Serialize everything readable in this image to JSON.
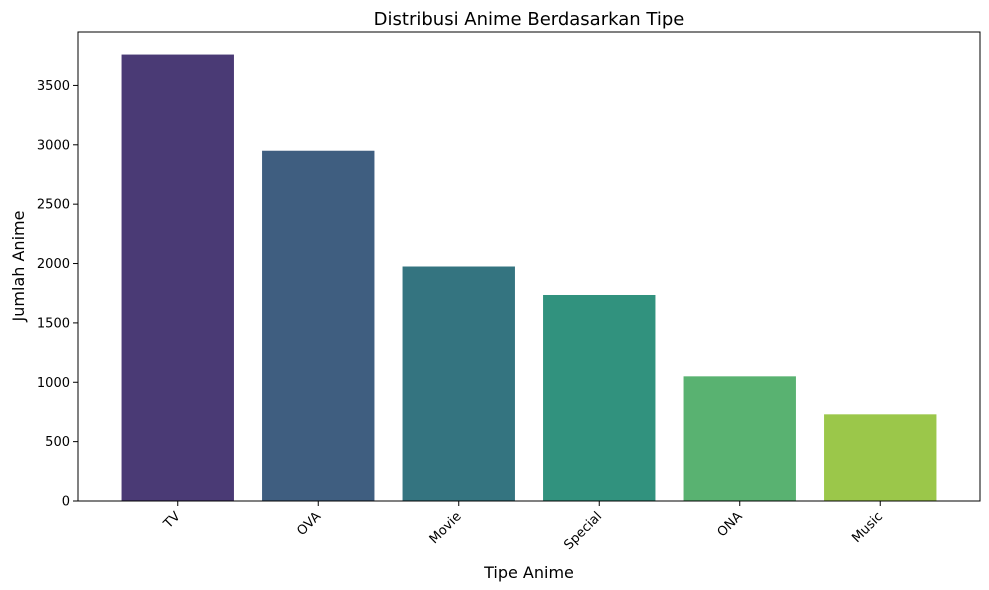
{
  "chart_data": {
    "type": "bar",
    "title": "Distribusi Anime Berdasarkan Tipe",
    "xlabel": "Tipe Anime",
    "ylabel": "Jumlah Anime",
    "categories": [
      "TV",
      "OVA",
      "Movie",
      "Special",
      "ONA",
      "Music"
    ],
    "values": [
      3760,
      2950,
      1975,
      1735,
      1050,
      730
    ],
    "colors": [
      "#4a3a75",
      "#3f5e80",
      "#347480",
      "#31927e",
      "#59b271",
      "#9bc74a"
    ],
    "ylim": [
      0,
      3950
    ],
    "yticks": [
      0,
      500,
      1000,
      1500,
      2000,
      2500,
      3000,
      3500
    ],
    "grid": false,
    "legend": "none"
  }
}
